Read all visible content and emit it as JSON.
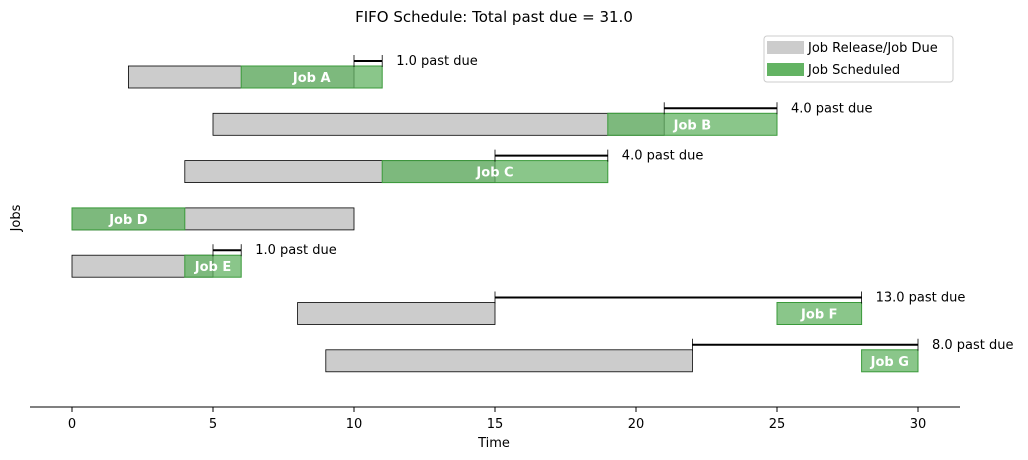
{
  "chart_data": {
    "type": "gantt",
    "title": "FIFO Schedule: Total past due = 31.0",
    "xlabel": "Time",
    "ylabel": "Jobs",
    "xlim": [
      -1.5,
      31.5
    ],
    "xticks": [
      0,
      5,
      10,
      15,
      20,
      25,
      30
    ],
    "colors": {
      "window": "#cccccc",
      "scheduled": "#4a9a4a",
      "scheduled_light": "#63b363",
      "due_line": "#000000"
    },
    "legend": {
      "placement": "top-right",
      "entries": [
        {
          "label": "Job Release/Job Due",
          "color": "#cccccc"
        },
        {
          "label": "Job Scheduled",
          "color": "#63b363"
        }
      ]
    },
    "jobs": [
      {
        "name": "Job A",
        "release": 2,
        "due": 10,
        "start": 6,
        "end": 11,
        "past_due": 1.0,
        "annotation": "1.0 past due"
      },
      {
        "name": "Job B",
        "release": 5,
        "due": 21,
        "start": 19,
        "end": 25,
        "past_due": 4.0,
        "annotation": "4.0 past due"
      },
      {
        "name": "Job C",
        "release": 4,
        "due": 15,
        "start": 11,
        "end": 19,
        "past_due": 4.0,
        "annotation": "4.0 past due"
      },
      {
        "name": "Job D",
        "release": 0,
        "due": 10,
        "start": 0,
        "end": 4,
        "past_due": 0,
        "annotation": ""
      },
      {
        "name": "Job E",
        "release": 0,
        "due": 5,
        "start": 4,
        "end": 6,
        "past_due": 1.0,
        "annotation": "1.0 past due"
      },
      {
        "name": "Job F",
        "release": 8,
        "due": 15,
        "start": 25,
        "end": 28,
        "past_due": 13.0,
        "annotation": "13.0 past due"
      },
      {
        "name": "Job G",
        "release": 9,
        "due": 22,
        "start": 28,
        "end": 30,
        "past_due": 8.0,
        "annotation": "8.0 past due"
      }
    ]
  }
}
